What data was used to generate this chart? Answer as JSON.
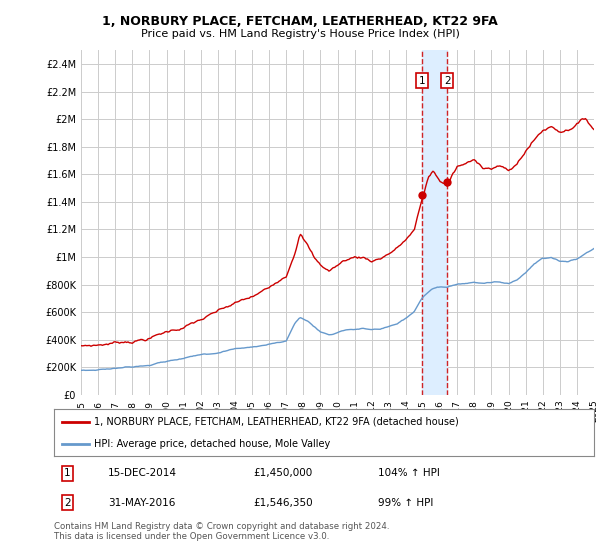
{
  "title": "1, NORBURY PLACE, FETCHAM, LEATHERHEAD, KT22 9FA",
  "subtitle": "Price paid vs. HM Land Registry's House Price Index (HPI)",
  "legend_label_red": "1, NORBURY PLACE, FETCHAM, LEATHERHEAD, KT22 9FA (detached house)",
  "legend_label_blue": "HPI: Average price, detached house, Mole Valley",
  "annotation1_num": "1",
  "annotation1_date": "15-DEC-2014",
  "annotation1_price": "£1,450,000",
  "annotation1_hpi": "104% ↑ HPI",
  "annotation2_num": "2",
  "annotation2_date": "31-MAY-2016",
  "annotation2_price": "£1,546,350",
  "annotation2_hpi": "99% ↑ HPI",
  "footnote": "Contains HM Land Registry data © Crown copyright and database right 2024.\nThis data is licensed under the Open Government Licence v3.0.",
  "ylim_min": 0,
  "ylim_max": 2500000,
  "yticks": [
    0,
    200000,
    400000,
    600000,
    800000,
    1000000,
    1200000,
    1400000,
    1600000,
    1800000,
    2000000,
    2200000,
    2400000
  ],
  "ytick_labels": [
    "£0",
    "£200K",
    "£400K",
    "£600K",
    "£800K",
    "£1M",
    "£1.2M",
    "£1.4M",
    "£1.6M",
    "£1.8M",
    "£2M",
    "£2.2M",
    "£2.4M"
  ],
  "red_color": "#cc0000",
  "blue_color": "#6699cc",
  "highlight_color": "#ddeeff",
  "vline_color": "#cc0000",
  "annotation_box_color": "#cc0000",
  "background_color": "#ffffff",
  "grid_color": "#cccccc",
  "sale1_x": 2014.96,
  "sale1_y": 1450000,
  "sale2_x": 2016.42,
  "sale2_y": 1546350,
  "xmin": 1995,
  "xmax": 2025
}
